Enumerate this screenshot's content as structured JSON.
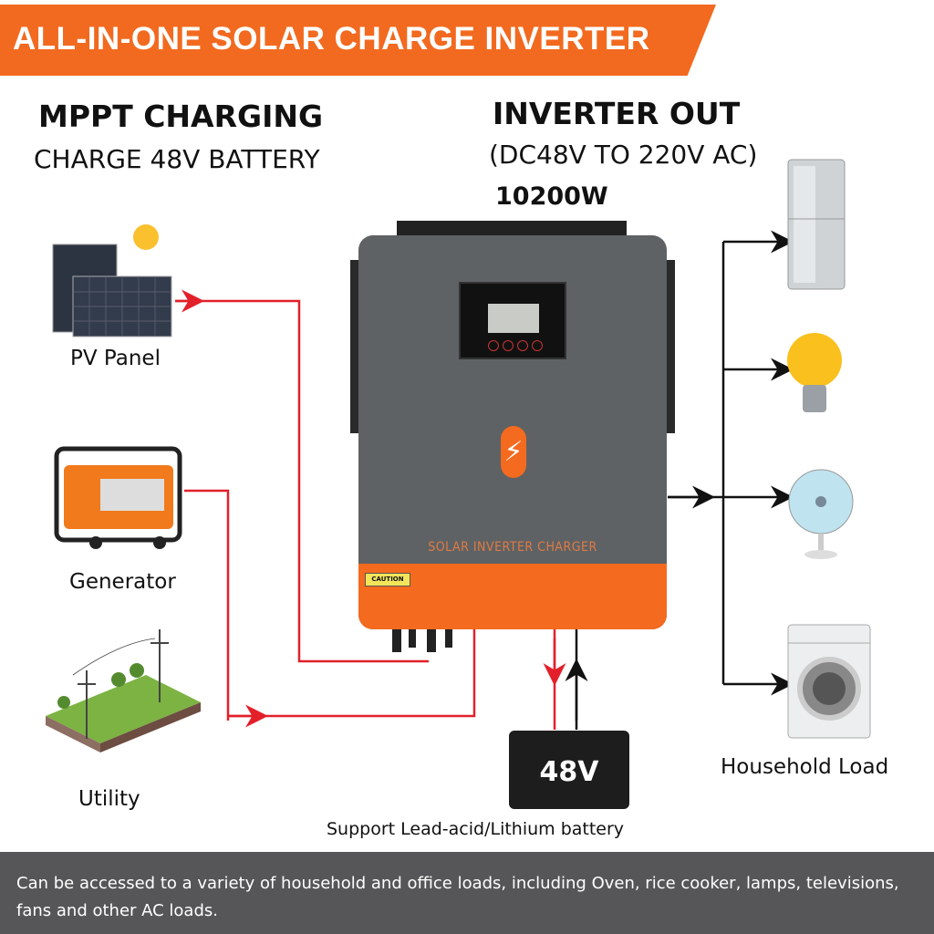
{
  "banner": {
    "title": "ALL-IN-ONE SOLAR CHARGE INVERTER",
    "color": "#f26a1f"
  },
  "left_heading": {
    "title": "MPPT CHARGING",
    "subtitle": "CHARGE 48V BATTERY"
  },
  "right_heading": {
    "title": "INVERTER OUT",
    "subtitle": "(DC48V TO 220V AC)",
    "power": "10200W"
  },
  "sources": [
    {
      "label": "PV Panel",
      "icon": "solar-panel-icon"
    },
    {
      "label": "Generator",
      "icon": "generator-icon"
    },
    {
      "label": "Utility",
      "icon": "power-grid-icon"
    }
  ],
  "inverter": {
    "label": "SOLAR INVERTER CHARGER",
    "caution": "CAUTION",
    "body_color": "#5e6264",
    "accent_color": "#f46a1e"
  },
  "battery": {
    "voltage": "48V",
    "caption": "Support Lead-acid/Lithium battery"
  },
  "loads": {
    "label": "Household Load",
    "items": [
      "refrigerator-icon",
      "light-bulb-icon",
      "fan-icon",
      "washing-machine-icon"
    ]
  },
  "footer": {
    "text": "Can be accessed to a variety of household and office loads, including Oven, rice cooker, lamps, televisions, fans and other AC loads."
  },
  "colors": {
    "input_wire": "#e2202a",
    "output_wire": "#111111"
  }
}
